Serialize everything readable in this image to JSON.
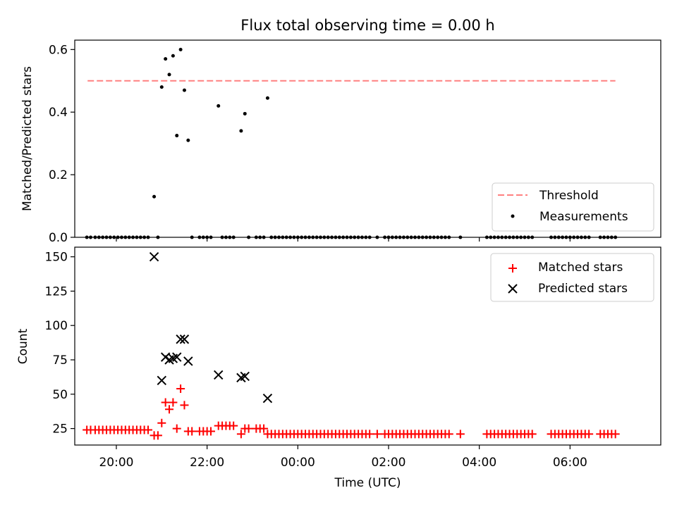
{
  "figure": {
    "title": "Flux total observing time = 0.00 h"
  },
  "chart_data": [
    {
      "type": "scatter",
      "ylabel": "Matched/Predicted stars",
      "ylim": [
        0,
        0.63
      ],
      "yticks": [
        0.0,
        0.2,
        0.4,
        0.6
      ],
      "ytick_labels": [
        "0.0",
        "0.2",
        "0.4",
        "0.6"
      ],
      "xlim": [
        "19:05",
        "08:00"
      ],
      "legend_position": "lower-right",
      "threshold": {
        "name": "Threshold",
        "value": 0.5,
        "x_start": "19:22",
        "x_end": "07:00",
        "color": "#ff8080"
      },
      "series": [
        {
          "name": "Measurements",
          "color": "#000000",
          "x": [
            "19:21",
            "19:26",
            "19:32",
            "19:37",
            "19:42",
            "19:47",
            "19:52",
            "19:57",
            "20:02",
            "20:07",
            "20:12",
            "20:17",
            "20:22",
            "20:27",
            "20:32",
            "20:37",
            "20:42",
            "20:50",
            "20:55",
            "21:00",
            "21:05",
            "21:10",
            "21:15",
            "21:20",
            "21:25",
            "21:30",
            "21:35",
            "21:40",
            "21:50",
            "21:55",
            "22:00",
            "22:05",
            "22:15",
            "22:20",
            "22:25",
            "22:30",
            "22:35",
            "22:45",
            "22:50",
            "22:55",
            "23:05",
            "23:10",
            "23:15",
            "23:20",
            "23:25",
            "23:30",
            "23:35",
            "23:40",
            "23:45",
            "23:50",
            "23:55",
            "00:00",
            "00:05",
            "00:10",
            "00:15",
            "00:20",
            "00:25",
            "00:30",
            "00:35",
            "00:40",
            "00:45",
            "00:50",
            "00:55",
            "01:00",
            "01:05",
            "01:10",
            "01:15",
            "01:20",
            "01:25",
            "01:30",
            "01:35",
            "01:45",
            "01:55",
            "02:00",
            "02:05",
            "02:10",
            "02:15",
            "02:20",
            "02:25",
            "02:30",
            "02:35",
            "02:40",
            "02:45",
            "02:50",
            "02:55",
            "03:00",
            "03:05",
            "03:10",
            "03:15",
            "03:20",
            "03:35",
            "04:10",
            "04:15",
            "04:20",
            "04:25",
            "04:30",
            "04:35",
            "04:40",
            "04:45",
            "04:50",
            "04:55",
            "05:00",
            "05:05",
            "05:10",
            "05:35",
            "05:40",
            "05:45",
            "05:50",
            "05:55",
            "06:00",
            "06:05",
            "06:10",
            "06:15",
            "06:20",
            "06:25",
            "06:40",
            "06:45",
            "06:50",
            "06:55",
            "07:00"
          ],
          "y": [
            0,
            0,
            0,
            0,
            0,
            0,
            0,
            0,
            0,
            0,
            0,
            0,
            0,
            0,
            0,
            0,
            0,
            0.13,
            0,
            0.48,
            0.57,
            0.52,
            0.58,
            0.325,
            0.6,
            0.47,
            0.31,
            0,
            0,
            0,
            0,
            0,
            0.42,
            0,
            0,
            0,
            0,
            0.34,
            0.395,
            0,
            0,
            0,
            0,
            0.445,
            0,
            0,
            0,
            0,
            0,
            0,
            0,
            0,
            0,
            0,
            0,
            0,
            0,
            0,
            0,
            0,
            0,
            0,
            0,
            0,
            0,
            0,
            0,
            0,
            0,
            0,
            0,
            0,
            0,
            0,
            0,
            0,
            0,
            0,
            0,
            0,
            0,
            0,
            0,
            0,
            0,
            0,
            0,
            0,
            0,
            0,
            0,
            0,
            0,
            0,
            0,
            0,
            0,
            0,
            0,
            0,
            0,
            0,
            0,
            0,
            0,
            0,
            0,
            0,
            0,
            0,
            0,
            0,
            0,
            0,
            0,
            0,
            0,
            0,
            0,
            0
          ]
        }
      ]
    },
    {
      "type": "scatter",
      "xlabel": "Time (UTC)",
      "ylabel": "Count",
      "ylim": [
        13,
        157
      ],
      "yticks": [
        25,
        50,
        75,
        100,
        125,
        150
      ],
      "ytick_labels": [
        "25",
        "50",
        "75",
        "100",
        "125",
        "150"
      ],
      "xlim": [
        "19:05",
        "08:00"
      ],
      "xticks": [
        "20:00",
        "22:00",
        "00:00",
        "02:00",
        "04:00",
        "06:00"
      ],
      "xtick_labels": [
        "20:00",
        "22:00",
        "00:00",
        "02:00",
        "04:00",
        "06:00"
      ],
      "legend_position": "upper-right",
      "series": [
        {
          "name": "Matched stars",
          "marker": "plus",
          "color": "#ff0000",
          "x": [
            "19:21",
            "19:26",
            "19:32",
            "19:37",
            "19:42",
            "19:47",
            "19:52",
            "19:57",
            "20:02",
            "20:07",
            "20:12",
            "20:17",
            "20:22",
            "20:27",
            "20:32",
            "20:37",
            "20:42",
            "20:50",
            "20:55",
            "21:00",
            "21:05",
            "21:10",
            "21:15",
            "21:20",
            "21:25",
            "21:30",
            "21:35",
            "21:40",
            "21:50",
            "21:55",
            "22:00",
            "22:05",
            "22:15",
            "22:20",
            "22:25",
            "22:30",
            "22:35",
            "22:45",
            "22:50",
            "22:55",
            "23:05",
            "23:10",
            "23:15",
            "23:20",
            "23:25",
            "23:30",
            "23:35",
            "23:40",
            "23:45",
            "23:50",
            "23:55",
            "00:00",
            "00:05",
            "00:10",
            "00:15",
            "00:20",
            "00:25",
            "00:30",
            "00:35",
            "00:40",
            "00:45",
            "00:50",
            "00:55",
            "01:00",
            "01:05",
            "01:10",
            "01:15",
            "01:20",
            "01:25",
            "01:30",
            "01:35",
            "01:45",
            "01:55",
            "02:00",
            "02:05",
            "02:10",
            "02:15",
            "02:20",
            "02:25",
            "02:30",
            "02:35",
            "02:40",
            "02:45",
            "02:50",
            "02:55",
            "03:00",
            "03:05",
            "03:10",
            "03:15",
            "03:20",
            "03:35",
            "04:10",
            "04:15",
            "04:20",
            "04:25",
            "04:30",
            "04:35",
            "04:40",
            "04:45",
            "04:50",
            "04:55",
            "05:00",
            "05:05",
            "05:10",
            "05:35",
            "05:40",
            "05:45",
            "05:50",
            "05:55",
            "06:00",
            "06:05",
            "06:10",
            "06:15",
            "06:20",
            "06:25",
            "06:40",
            "06:45",
            "06:50",
            "06:55",
            "07:00"
          ],
          "y": [
            24,
            24,
            24,
            24,
            24,
            24,
            24,
            24,
            24,
            24,
            24,
            24,
            24,
            24,
            24,
            24,
            24,
            20,
            20,
            29,
            44,
            39,
            44,
            25,
            54,
            42,
            23,
            23,
            23,
            23,
            23,
            23,
            27,
            27,
            27,
            27,
            27,
            21,
            25,
            25,
            25,
            25,
            25,
            21,
            21,
            21,
            21,
            21,
            21,
            21,
            21,
            21,
            21,
            21,
            21,
            21,
            21,
            21,
            21,
            21,
            21,
            21,
            21,
            21,
            21,
            21,
            21,
            21,
            21,
            21,
            21,
            21,
            21,
            21,
            21,
            21,
            21,
            21,
            21,
            21,
            21,
            21,
            21,
            21,
            21,
            21,
            21,
            21,
            21,
            21,
            21,
            21,
            21,
            21,
            21,
            21,
            21,
            21,
            21,
            21,
            21,
            21,
            21,
            21,
            21,
            21,
            21,
            21,
            21,
            21,
            21,
            21,
            21,
            21,
            21,
            21,
            21,
            21,
            21,
            21
          ]
        },
        {
          "name": "Predicted stars",
          "marker": "x",
          "color": "#000000",
          "x": [
            "20:50",
            "21:00",
            "21:05",
            "21:10",
            "21:15",
            "21:20",
            "21:25",
            "21:30",
            "21:35",
            "22:15",
            "22:45",
            "22:50",
            "23:20"
          ],
          "y": [
            150,
            60,
            77,
            75,
            76,
            77,
            90,
            90,
            74,
            64,
            62,
            63,
            47
          ]
        }
      ]
    }
  ]
}
